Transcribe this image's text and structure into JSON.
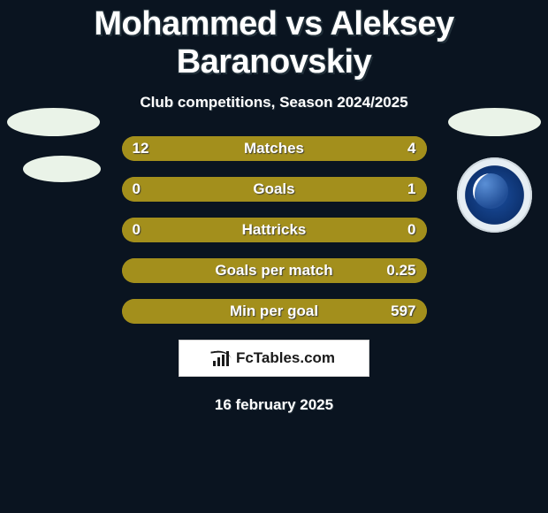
{
  "title": "Mohammed vs Aleksey Baranovskiy",
  "subtitle": "Club competitions, Season 2024/2025",
  "date": "16 february 2025",
  "brand": {
    "text": "FcTables.com"
  },
  "colors": {
    "bar_left": "#a38f1c",
    "bar_right": "#a38f1c",
    "bar_bg_left": "#a38f1c",
    "bar_bg_right": "#a38f1c",
    "track": "#a38f1c",
    "background": "#0a1420",
    "title_text": "#ffffff"
  },
  "bars": [
    {
      "label": "Matches",
      "left_val": "12",
      "right_val": "4",
      "left_pct": 75,
      "right_pct": 25
    },
    {
      "label": "Goals",
      "left_val": "0",
      "right_val": "1",
      "left_pct": 18,
      "right_pct": 82
    },
    {
      "label": "Hattricks",
      "left_val": "0",
      "right_val": "0",
      "left_pct": 100,
      "right_pct": 0
    },
    {
      "label": "Goals per match",
      "left_val": "",
      "right_val": "0.25",
      "left_pct": 0,
      "right_pct": 100
    },
    {
      "label": "Min per goal",
      "left_val": "",
      "right_val": "597",
      "left_pct": 0,
      "right_pct": 100
    }
  ]
}
